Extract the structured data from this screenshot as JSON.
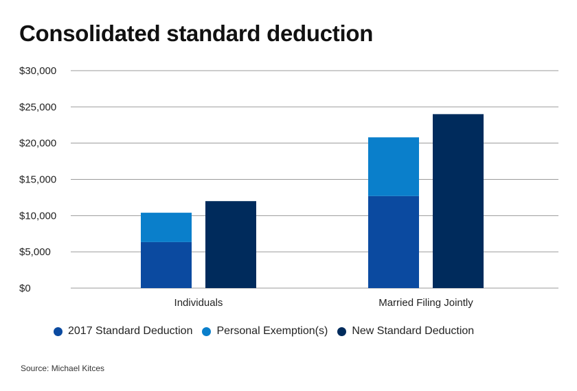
{
  "title": "Consolidated standard deduction",
  "source": "Source: Michael Kitces",
  "colors": {
    "standard_2017": "#0b4aa0",
    "exemption": "#0a7fcb",
    "new_standard": "#002b5c",
    "grid": "#9a9a9a"
  },
  "chart_data": {
    "type": "bar",
    "stacked_groups": true,
    "categories": [
      "Individuals",
      "Married Filing Jointly"
    ],
    "series": [
      {
        "name": "2017 Standard Deduction",
        "stack": "old",
        "values": [
          6350,
          12700
        ]
      },
      {
        "name": "Personal Exemption(s)",
        "stack": "old",
        "values": [
          4050,
          8100
        ]
      },
      {
        "name": "New Standard Deduction",
        "stack": "new",
        "values": [
          12000,
          24000
        ]
      }
    ],
    "ylim": [
      0,
      30000
    ],
    "yticks": [
      0,
      5000,
      10000,
      15000,
      20000,
      25000,
      30000
    ],
    "ytick_labels": [
      "$0",
      "$5,000",
      "$10,000",
      "$15,000",
      "$20,000",
      "$25,000",
      "$30,000"
    ],
    "grid": true,
    "legend_position": "bottom"
  }
}
